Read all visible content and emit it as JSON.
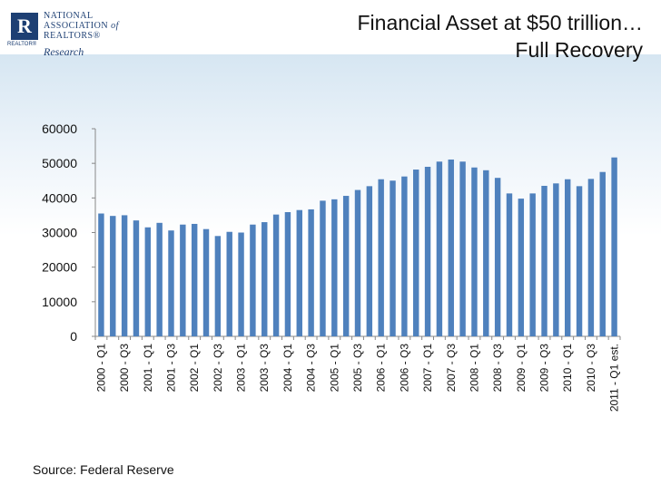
{
  "header": {
    "logo_line1": "NATIONAL",
    "logo_line2": "ASSOCIATION",
    "logo_of": "of",
    "logo_line3": "REALTORS®",
    "logo_research": "Research",
    "logo_realtor": "REALTOR®",
    "title_line1": "Financial Asset at $50 trillion…",
    "title_line2": "Full Recovery"
  },
  "footer": {
    "source": "Source: Federal Reserve"
  },
  "colors": {
    "bar": "#4f81bd",
    "axis": "#888888"
  },
  "chart_data": {
    "type": "bar",
    "title": "",
    "xlabel": "",
    "ylabel": "",
    "ylim": [
      0,
      60000
    ],
    "yticks": [
      0,
      10000,
      20000,
      30000,
      40000,
      50000,
      60000
    ],
    "categories": [
      "2000 - Q1",
      "2000 - Q2",
      "2000 - Q3",
      "2000 - Q4",
      "2001 - Q1",
      "2001 - Q2",
      "2001 - Q3",
      "2001 - Q4",
      "2002 - Q1",
      "2002 - Q2",
      "2002 - Q3",
      "2002 - Q4",
      "2003 - Q1",
      "2003 - Q2",
      "2003 - Q3",
      "2003 - Q4",
      "2004 - Q1",
      "2004 - Q2",
      "2004 - Q3",
      "2004 - Q4",
      "2005 - Q1",
      "2005 - Q2",
      "2005 - Q3",
      "2005 - Q4",
      "2006 - Q1",
      "2006 - Q2",
      "2006 - Q3",
      "2006 - Q4",
      "2007 - Q1",
      "2007 - Q2",
      "2007 - Q3",
      "2007 - Q4",
      "2008 - Q1",
      "2008 - Q2",
      "2008 - Q3",
      "2008 - Q4",
      "2009 - Q1",
      "2009 - Q2",
      "2009 - Q3",
      "2009 - Q4",
      "2010 - Q1",
      "2010 - Q2",
      "2010 - Q3",
      "2010 - Q4",
      "2011 - Q1 est."
    ],
    "shown_tick_labels": [
      "2000 - Q1",
      "2000 - Q3",
      "2001 - Q1",
      "2001 - Q3",
      "2002 - Q1",
      "2002 - Q3",
      "2003 - Q1",
      "2003 - Q3",
      "2004 - Q1",
      "2004 - Q3",
      "2005 - Q1",
      "2005 - Q3",
      "2006 - Q1",
      "2006 - Q3",
      "2007 - Q1",
      "2007 - Q3",
      "2008 - Q1",
      "2008 - Q3",
      "2009 - Q1",
      "2009 - Q3",
      "2010 - Q1",
      "2010 - Q3",
      "2011 - Q1 est."
    ],
    "values": [
      35500,
      34800,
      35000,
      33500,
      31500,
      32800,
      30600,
      32300,
      32500,
      31000,
      29000,
      30200,
      30000,
      32300,
      33000,
      35200,
      35900,
      36500,
      36700,
      39200,
      39600,
      40600,
      42300,
      43400,
      45400,
      45000,
      46200,
      48200,
      49000,
      50500,
      51100,
      50500,
      48800,
      48000,
      45800,
      41300,
      39800,
      41300,
      43500,
      44200,
      45400,
      43400,
      45500,
      47500,
      51700
    ],
    "grid": false,
    "legend": "none"
  }
}
